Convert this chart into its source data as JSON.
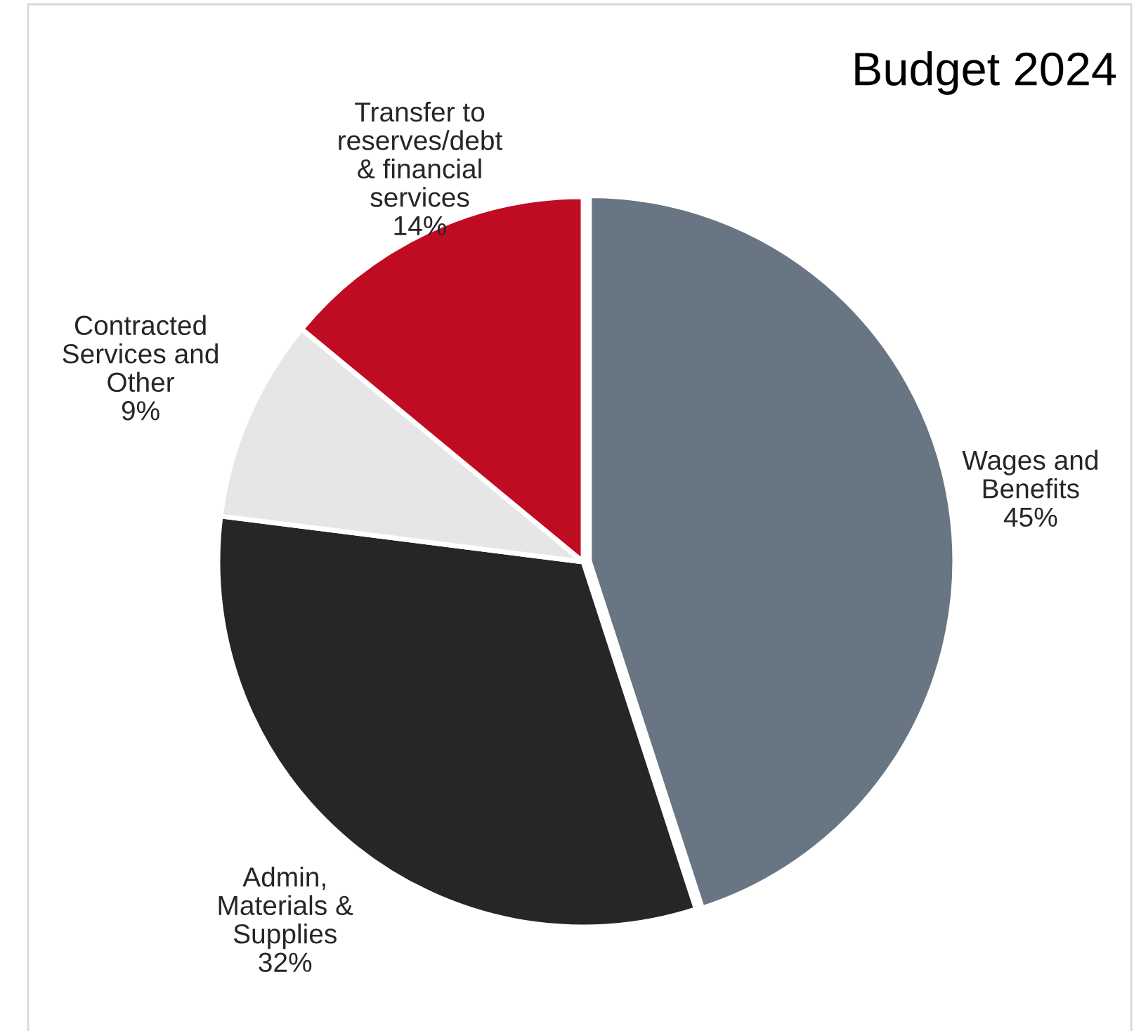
{
  "chart_data": {
    "type": "pie",
    "title": "Budget 2024",
    "categories": [
      "Wages and\nBenefits",
      "Admin,\nMaterials &\nSupplies",
      "Contracted\nServices and\nOther",
      "Transfer to\nreserves/debt\n& financial\nservices"
    ],
    "values": [
      45,
      32,
      9,
      14
    ],
    "colors": [
      "#687583",
      "#262626",
      "#e6e6e6",
      "#c00c22"
    ],
    "value_labels": [
      "45%",
      "32%",
      "9%",
      "14%"
    ]
  }
}
